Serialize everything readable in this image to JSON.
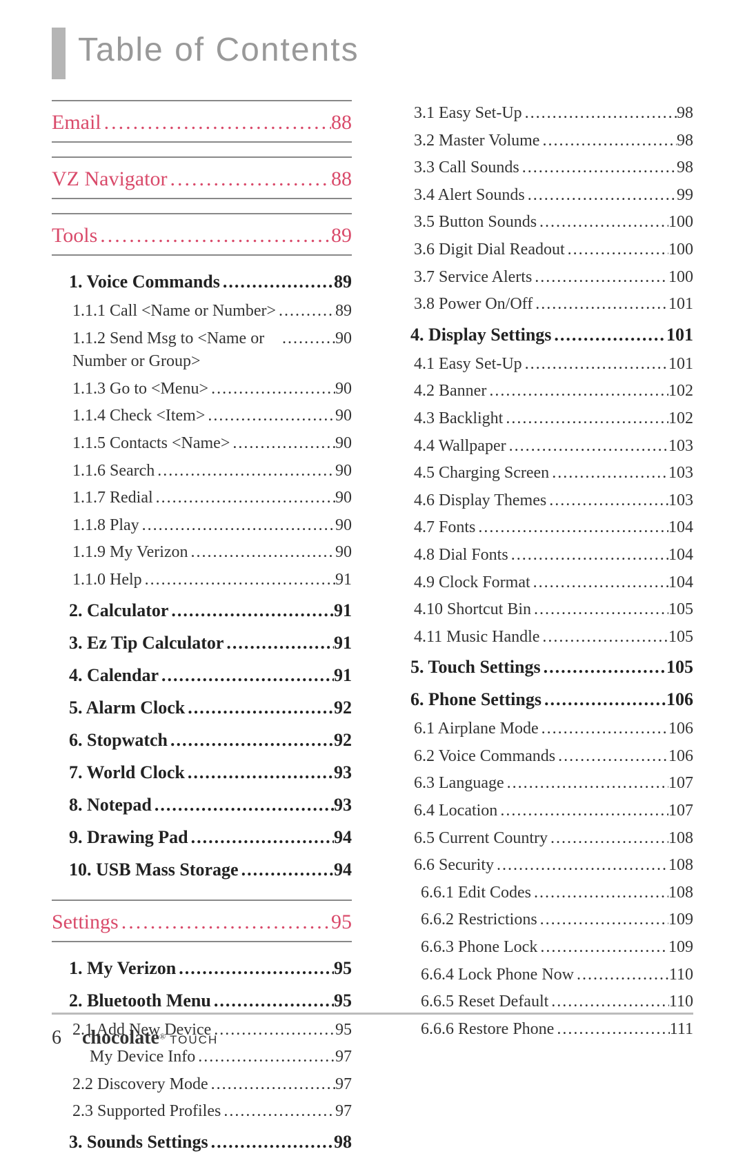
{
  "title": "Table of Contents",
  "pageNumber": "6",
  "brand": "chocolate",
  "brandReg": "®",
  "brandSub": "TOUCH",
  "left": [
    {
      "cls": "section",
      "label": "Email",
      "page": "88"
    },
    {
      "cls": "section",
      "label": "VZ Navigator",
      "page": "88"
    },
    {
      "cls": "section",
      "label": "Tools",
      "page": "89"
    },
    {
      "cls": "bold1",
      "label": "1. Voice Commands",
      "page": "89"
    },
    {
      "cls": "sub1",
      "label": "1.1.1 Call <Name or Number>",
      "page": "89"
    },
    {
      "cls": "sub1 wrap",
      "label": "1.1.2 Send Msg to <Name or Number or Group>",
      "page": "90"
    },
    {
      "cls": "sub1",
      "label": "1.1.3 Go to <Menu>",
      "page": "90"
    },
    {
      "cls": "sub1",
      "label": "1.1.4 Check <Item>",
      "page": "90"
    },
    {
      "cls": "sub1",
      "label": "1.1.5 Contacts <Name>",
      "page": "90"
    },
    {
      "cls": "sub1",
      "label": "1.1.6 Search",
      "page": "90"
    },
    {
      "cls": "sub1",
      "label": "1.1.7 Redial",
      "page": "90"
    },
    {
      "cls": "sub1",
      "label": "1.1.8 Play",
      "page": "90"
    },
    {
      "cls": "sub1",
      "label": "1.1.9 My Verizon",
      "page": "90"
    },
    {
      "cls": "sub1",
      "label": "1.1.0 Help",
      "page": "91"
    },
    {
      "cls": "bold1",
      "label": "2. Calculator",
      "page": "91"
    },
    {
      "cls": "bold1",
      "label": "3. Ez Tip Calculator",
      "page": "91"
    },
    {
      "cls": "bold1",
      "label": "4. Calendar",
      "page": "91"
    },
    {
      "cls": "bold1",
      "label": "5. Alarm Clock",
      "page": "92"
    },
    {
      "cls": "bold1",
      "label": "6. Stopwatch",
      "page": "92"
    },
    {
      "cls": "bold1",
      "label": "7. World Clock",
      "page": "93"
    },
    {
      "cls": "bold1",
      "label": "8. Notepad",
      "page": "93"
    },
    {
      "cls": "bold1",
      "label": "9. Drawing Pad",
      "page": "94"
    },
    {
      "cls": "bold1",
      "label": "10. USB Mass Storage",
      "page": "94"
    },
    {
      "cls": "section",
      "label": "Settings",
      "page": "95"
    },
    {
      "cls": "bold1",
      "label": "1. My Verizon",
      "page": "95"
    },
    {
      "cls": "bold1",
      "label": "2. Bluetooth Menu",
      "page": "95"
    },
    {
      "cls": "sub1",
      "label": "2.1 Add New Device",
      "page": "95"
    },
    {
      "cls": "sub3",
      "label": "My Device Info",
      "page": "97"
    },
    {
      "cls": "sub1",
      "label": "2.2 Discovery Mode",
      "page": "97"
    },
    {
      "cls": "sub1",
      "label": "2.3 Supported Profiles",
      "page": "97"
    },
    {
      "cls": "bold1",
      "label": "3. Sounds Settings",
      "page": "98"
    }
  ],
  "right": [
    {
      "cls": "sub1",
      "label": "3.1 Easy Set-Up",
      "page": "98"
    },
    {
      "cls": "sub1",
      "label": "3.2 Master Volume",
      "page": "98"
    },
    {
      "cls": "sub1",
      "label": "3.3 Call Sounds",
      "page": "98"
    },
    {
      "cls": "sub1",
      "label": "3.4 Alert Sounds",
      "page": "99"
    },
    {
      "cls": "sub1",
      "label": "3.5 Button Sounds",
      "page": "100"
    },
    {
      "cls": "sub1",
      "label": "3.6 Digit Dial Readout",
      "page": "100"
    },
    {
      "cls": "sub1",
      "label": "3.7 Service Alerts",
      "page": "100"
    },
    {
      "cls": "sub1",
      "label": "3.8 Power On/Off",
      "page": "101"
    },
    {
      "cls": "bold1",
      "label": "4. Display Settings",
      "page": "101"
    },
    {
      "cls": "sub1",
      "label": "4.1 Easy Set-Up",
      "page": "101"
    },
    {
      "cls": "sub1",
      "label": "4.2 Banner",
      "page": "102"
    },
    {
      "cls": "sub1",
      "label": "4.3 Backlight",
      "page": "102"
    },
    {
      "cls": "sub1",
      "label": "4.4 Wallpaper",
      "page": "103"
    },
    {
      "cls": "sub1",
      "label": "4.5 Charging Screen",
      "page": "103"
    },
    {
      "cls": "sub1",
      "label": "4.6 Display Themes",
      "page": "103"
    },
    {
      "cls": "sub1",
      "label": "4.7 Fonts",
      "page": "104"
    },
    {
      "cls": "sub1",
      "label": "4.8 Dial Fonts",
      "page": "104"
    },
    {
      "cls": "sub1",
      "label": "4.9 Clock Format",
      "page": "104"
    },
    {
      "cls": "sub1",
      "label": "4.10 Shortcut Bin",
      "page": "105"
    },
    {
      "cls": "sub1",
      "label": "4.11 Music Handle",
      "page": "105"
    },
    {
      "cls": "bold1",
      "label": "5. Touch Settings",
      "page": "105"
    },
    {
      "cls": "bold1",
      "label": "6. Phone Settings",
      "page": "106"
    },
    {
      "cls": "sub1",
      "label": "6.1 Airplane Mode",
      "page": "106"
    },
    {
      "cls": "sub1",
      "label": "6.2 Voice Commands",
      "page": "106"
    },
    {
      "cls": "sub1",
      "label": "6.3 Language",
      "page": "107"
    },
    {
      "cls": "sub1",
      "label": "6.4 Location",
      "page": "107"
    },
    {
      "cls": "sub1",
      "label": "6.5 Current Country",
      "page": "108"
    },
    {
      "cls": "sub1",
      "label": "6.6 Security",
      "page": "108"
    },
    {
      "cls": "sub2",
      "label": "6.6.1 Edit Codes",
      "page": "108"
    },
    {
      "cls": "sub2",
      "label": "6.6.2 Restrictions",
      "page": "109"
    },
    {
      "cls": "sub2",
      "label": "6.6.3 Phone Lock",
      "page": "109"
    },
    {
      "cls": "sub2",
      "label": "6.6.4 Lock Phone Now",
      "page": "110"
    },
    {
      "cls": "sub2",
      "label": "6.6.5 Reset Default",
      "page": "110"
    },
    {
      "cls": "sub2",
      "label": "6.6.6 Restore Phone",
      "page": "111"
    }
  ]
}
